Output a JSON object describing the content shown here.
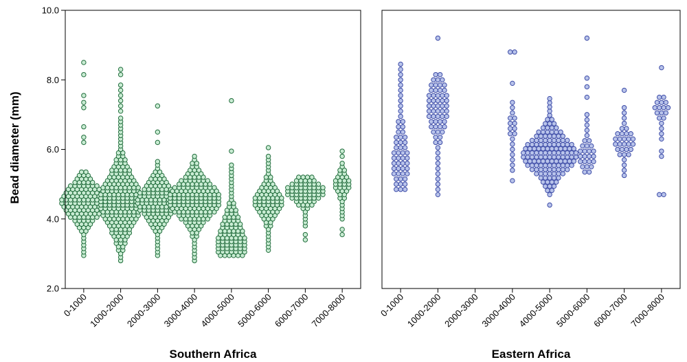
{
  "chart_data": {
    "type": "scatter",
    "subtype": "dot-density strip plot",
    "ylabel": "Bead diameter (mm)",
    "ylim": [
      2.0,
      10.0
    ],
    "yticks": [
      "2.0",
      "4.0",
      "6.0",
      "8.0",
      "10.0"
    ],
    "grid": false,
    "categories": [
      "0-1000",
      "1000-2000",
      "2000-3000",
      "3000-4000",
      "4000-5000",
      "5000-6000",
      "6000-7000",
      "7000-8000"
    ],
    "panels": [
      {
        "name": "Southern Africa",
        "colors": {
          "fill": "#c9ecd3",
          "stroke": "#1f6b3a"
        },
        "groups": [
          {
            "category": "0-1000",
            "summary": {
              "min": 2.95,
              "median": 4.5,
              "max": 8.5
            },
            "outliers": [
              8.5,
              8.15,
              7.55,
              7.35,
              7.2,
              6.65,
              6.35,
              6.2
            ],
            "core": {
              "low": 2.95,
              "high": 5.4,
              "center": 4.5,
              "maxWidth": 11,
              "step": 0.1
            }
          },
          {
            "category": "1000-2000",
            "summary": {
              "min": 2.8,
              "median": 4.5,
              "max": 8.3
            },
            "outliers": [
              8.3,
              8.15,
              7.85,
              7.7,
              7.55,
              7.4,
              7.25,
              7.1
            ],
            "core": {
              "low": 2.8,
              "high": 6.95,
              "center": 4.5,
              "maxWidth": 10,
              "step": 0.1
            }
          },
          {
            "category": "2000-3000",
            "summary": {
              "min": 2.95,
              "median": 4.5,
              "max": 7.25
            },
            "outliers": [
              7.25,
              6.5,
              6.2
            ],
            "core": {
              "low": 2.95,
              "high": 5.65,
              "center": 4.5,
              "maxWidth": 10,
              "step": 0.1
            }
          },
          {
            "category": "3000-4000",
            "summary": {
              "min": 2.8,
              "median": 4.5,
              "max": 5.8
            },
            "outliers": [],
            "core": {
              "low": 2.8,
              "high": 5.8,
              "center": 4.55,
              "maxWidth": 12,
              "step": 0.1
            }
          },
          {
            "category": "4000-5000",
            "summary": {
              "min": 2.95,
              "median": 3.25,
              "max": 7.4
            },
            "outliers": [
              7.4,
              5.95
            ],
            "core": {
              "low": 2.95,
              "high": 5.6,
              "center": 3.25,
              "maxWidth": 7,
              "step": 0.1
            }
          },
          {
            "category": "5000-6000",
            "summary": {
              "min": 3.1,
              "median": 4.5,
              "max": 6.05
            },
            "outliers": [
              6.05
            ],
            "core": {
              "low": 3.1,
              "high": 5.8,
              "center": 4.5,
              "maxWidth": 7,
              "step": 0.1
            }
          },
          {
            "category": "6000-7000",
            "summary": {
              "min": 3.4,
              "median": 4.8,
              "max": 5.2
            },
            "outliers": [
              3.55,
              3.4
            ],
            "core": {
              "low": 3.8,
              "high": 5.2,
              "center": 4.8,
              "maxWidth": 9,
              "step": 0.1
            }
          },
          {
            "category": "7000-8000",
            "summary": {
              "min": 3.55,
              "median": 5.0,
              "max": 5.95
            },
            "outliers": [
              5.95,
              5.8,
              3.7,
              3.55
            ],
            "core": {
              "low": 4.0,
              "high": 5.6,
              "center": 5.0,
              "maxWidth": 4,
              "step": 0.1
            }
          }
        ]
      },
      {
        "name": "Eastern Africa",
        "colors": {
          "fill": "#b8c3ea",
          "stroke": "#3b4aa6"
        },
        "groups": [
          {
            "category": "0-1000",
            "summary": {
              "min": 4.85,
              "median": 5.6,
              "max": 8.5
            },
            "outliers": [],
            "core": {
              "low": 4.85,
              "high": 8.5,
              "center": 5.6,
              "maxWidth": 4,
              "step": 0.15
            }
          },
          {
            "category": "1000-2000",
            "summary": {
              "min": 4.7,
              "median": 7.25,
              "max": 9.2
            },
            "outliers": [
              9.2
            ],
            "core": {
              "low": 4.7,
              "high": 8.2,
              "center": 7.25,
              "maxWidth": 5,
              "step": 0.15
            }
          },
          {
            "category": "2000-3000",
            "summary": null,
            "outliers": [],
            "core": null
          },
          {
            "category": "3000-4000",
            "summary": {
              "min": 5.1,
              "median": 6.7,
              "max": 8.8
            },
            "outliers": [
              8.8,
              8.8,
              7.9,
              5.1
            ],
            "core": {
              "low": 5.4,
              "high": 7.45,
              "center": 6.7,
              "maxWidth": 2,
              "step": 0.15
            }
          },
          {
            "category": "4000-5000",
            "summary": {
              "min": 4.4,
              "median": 5.85,
              "max": 7.55
            },
            "outliers": [
              4.4
            ],
            "core": {
              "low": 4.7,
              "high": 7.55,
              "center": 5.85,
              "maxWidth": 13,
              "step": 0.12
            }
          },
          {
            "category": "5000-6000",
            "summary": {
              "min": 5.35,
              "median": 5.8,
              "max": 9.2
            },
            "outliers": [
              9.2,
              8.05,
              7.8,
              7.5
            ],
            "core": {
              "low": 5.35,
              "high": 7.0,
              "center": 5.8,
              "maxWidth": 4,
              "step": 0.15
            }
          },
          {
            "category": "6000-7000",
            "summary": {
              "min": 5.25,
              "median": 6.2,
              "max": 7.7
            },
            "outliers": [
              7.7
            ],
            "core": {
              "low": 5.25,
              "high": 7.25,
              "center": 6.2,
              "maxWidth": 5,
              "step": 0.15
            }
          },
          {
            "category": "7000-8000",
            "summary": {
              "min": 4.7,
              "median": 7.2,
              "max": 8.35
            },
            "outliers": [
              8.35,
              5.95,
              5.8,
              4.7,
              4.7
            ],
            "core": {
              "low": 6.3,
              "high": 7.55,
              "center": 7.2,
              "maxWidth": 4,
              "step": 0.15
            }
          }
        ]
      }
    ]
  }
}
